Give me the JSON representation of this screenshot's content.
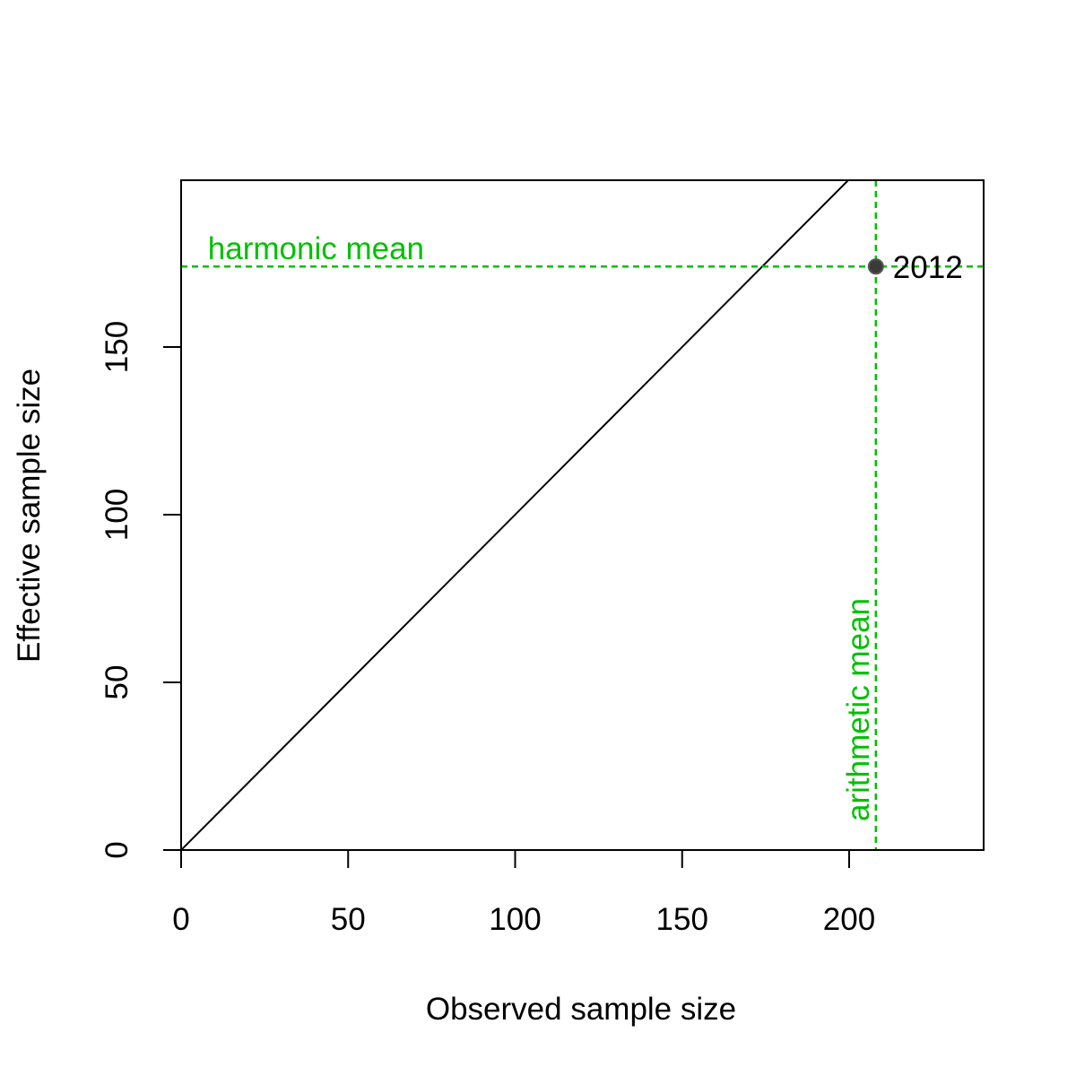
{
  "chart_data": {
    "type": "scatter",
    "title": "",
    "xlabel": "Observed sample size",
    "ylabel": "Effective sample size",
    "xlim": [
      0,
      240
    ],
    "ylim": [
      0,
      200
    ],
    "xticks": [
      0,
      50,
      100,
      150,
      200
    ],
    "yticks": [
      0,
      50,
      100,
      150
    ],
    "grid": false,
    "legend": "none",
    "points": [
      {
        "x": 208,
        "y": 174,
        "label": "2012"
      }
    ],
    "reference_line": {
      "type": "identity",
      "from": [
        0,
        0
      ],
      "to": [
        200,
        200
      ]
    },
    "arithmetic_mean": {
      "x": 208,
      "label": "arithmetic mean"
    },
    "harmonic_mean": {
      "y": 174,
      "label": "harmonic mean"
    },
    "colors": {
      "point": "#3a3a3a",
      "mean_lines": "#00c000",
      "axes": "#000000"
    }
  }
}
